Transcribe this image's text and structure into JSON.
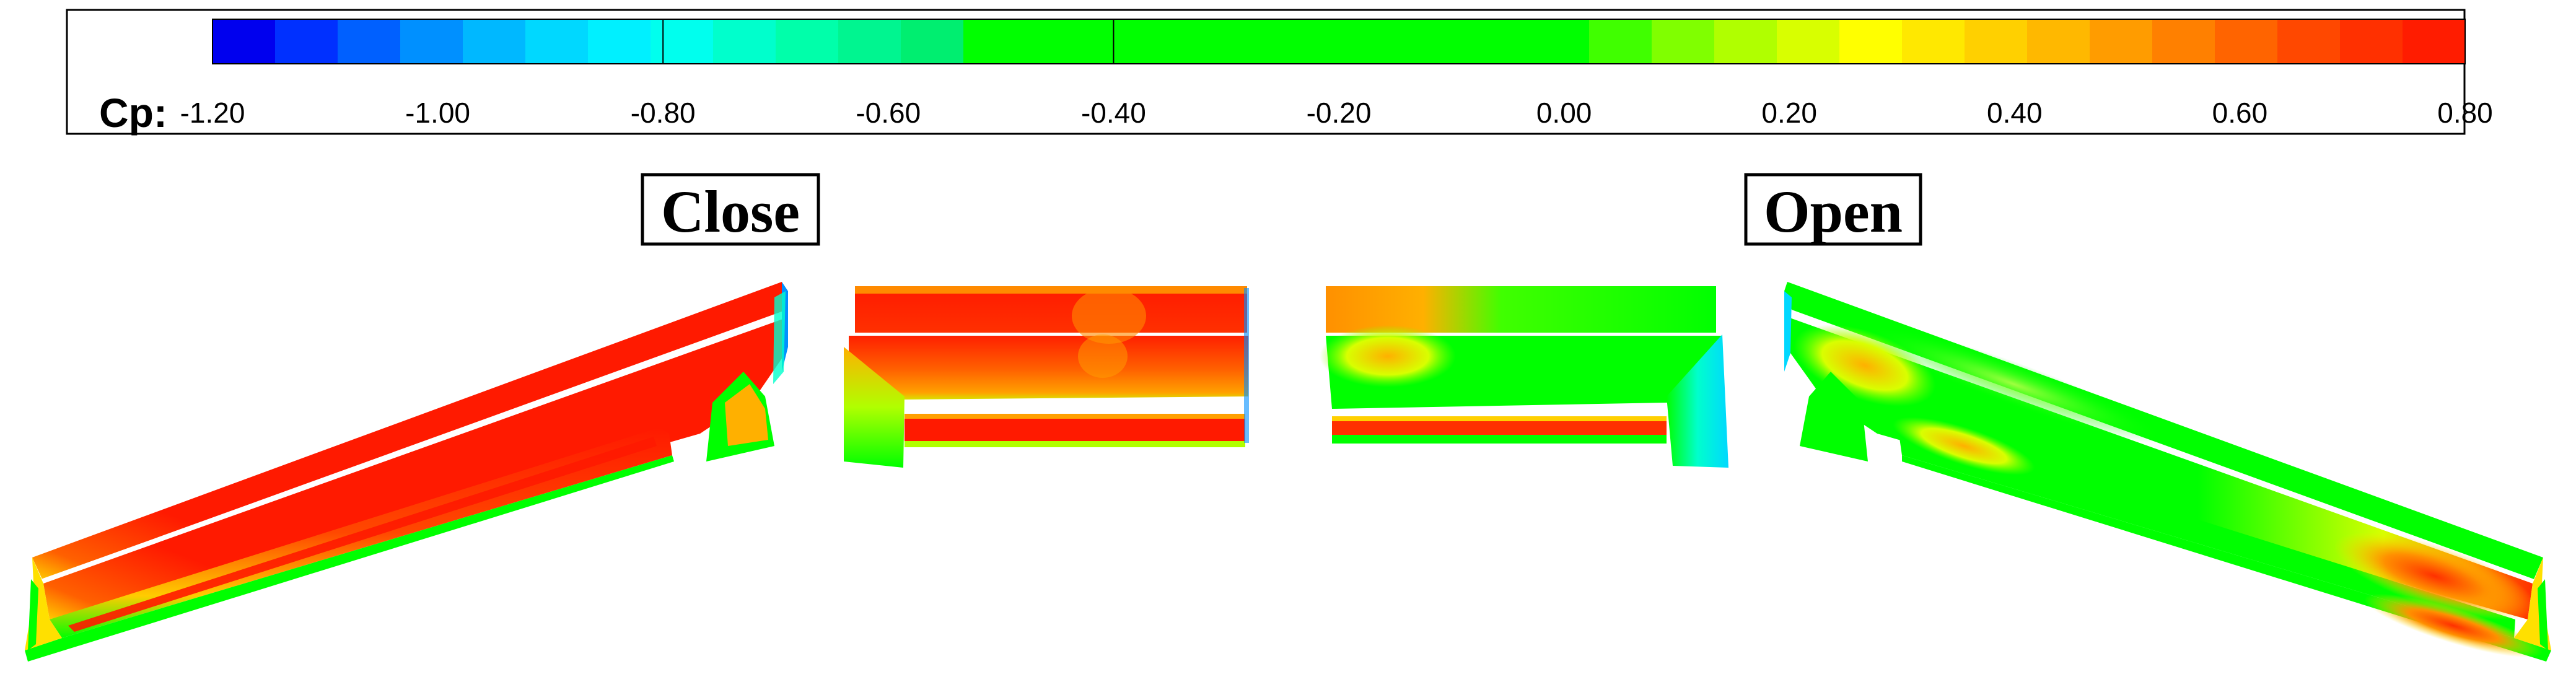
{
  "colorbar": {
    "title": "Cp:",
    "tick_labels": [
      "-1.20",
      "-1.00",
      "-0.80",
      "-0.60",
      "-0.40",
      "-0.20",
      "0.00",
      "0.20",
      "0.40",
      "0.60",
      "0.80"
    ],
    "range": [
      -1.2,
      0.8
    ],
    "colors": [
      "#0000ee",
      "#0030ff",
      "#0060ff",
      "#0090ff",
      "#00b8ff",
      "#00d8ff",
      "#00f0ff",
      "#00ffee",
      "#00ffcc",
      "#00ffaa",
      "#00f590",
      "#00ee70",
      "#00ff00",
      "#00ff00",
      "#00ff00",
      "#00ff00",
      "#00ff00",
      "#00ff00",
      "#00ff00",
      "#00ff00",
      "#00ff00",
      "#00ff00",
      "#40ff00",
      "#80ff00",
      "#b0ff00",
      "#d8ff00",
      "#ffff00",
      "#ffe800",
      "#ffd000",
      "#ffb800",
      "#ff9c00",
      "#ff8000",
      "#ff6400",
      "#ff4800",
      "#ff3000",
      "#ff1c00"
    ]
  },
  "panels": {
    "close": {
      "label": "Close"
    },
    "open": {
      "label": "Open"
    }
  },
  "palette": {
    "red": "#ff1a00",
    "orange": "#ff8a00",
    "yellow": "#f5ff00",
    "green": "#00ff00",
    "cyan": "#00ffcc",
    "blue": "#0080ff"
  }
}
